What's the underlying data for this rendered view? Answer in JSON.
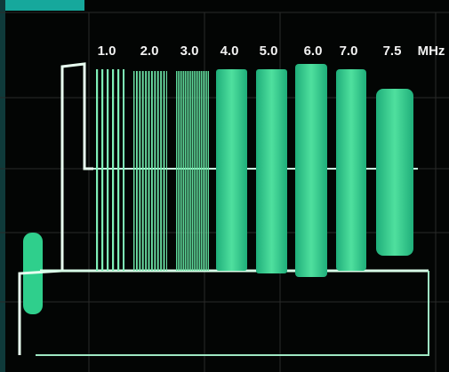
{
  "burst_labels": [
    "1.0",
    "2.0",
    "3.0",
    "4.0",
    "5.0",
    "6.0",
    "7.0",
    "7.5"
  ],
  "unit": "MHz"
}
